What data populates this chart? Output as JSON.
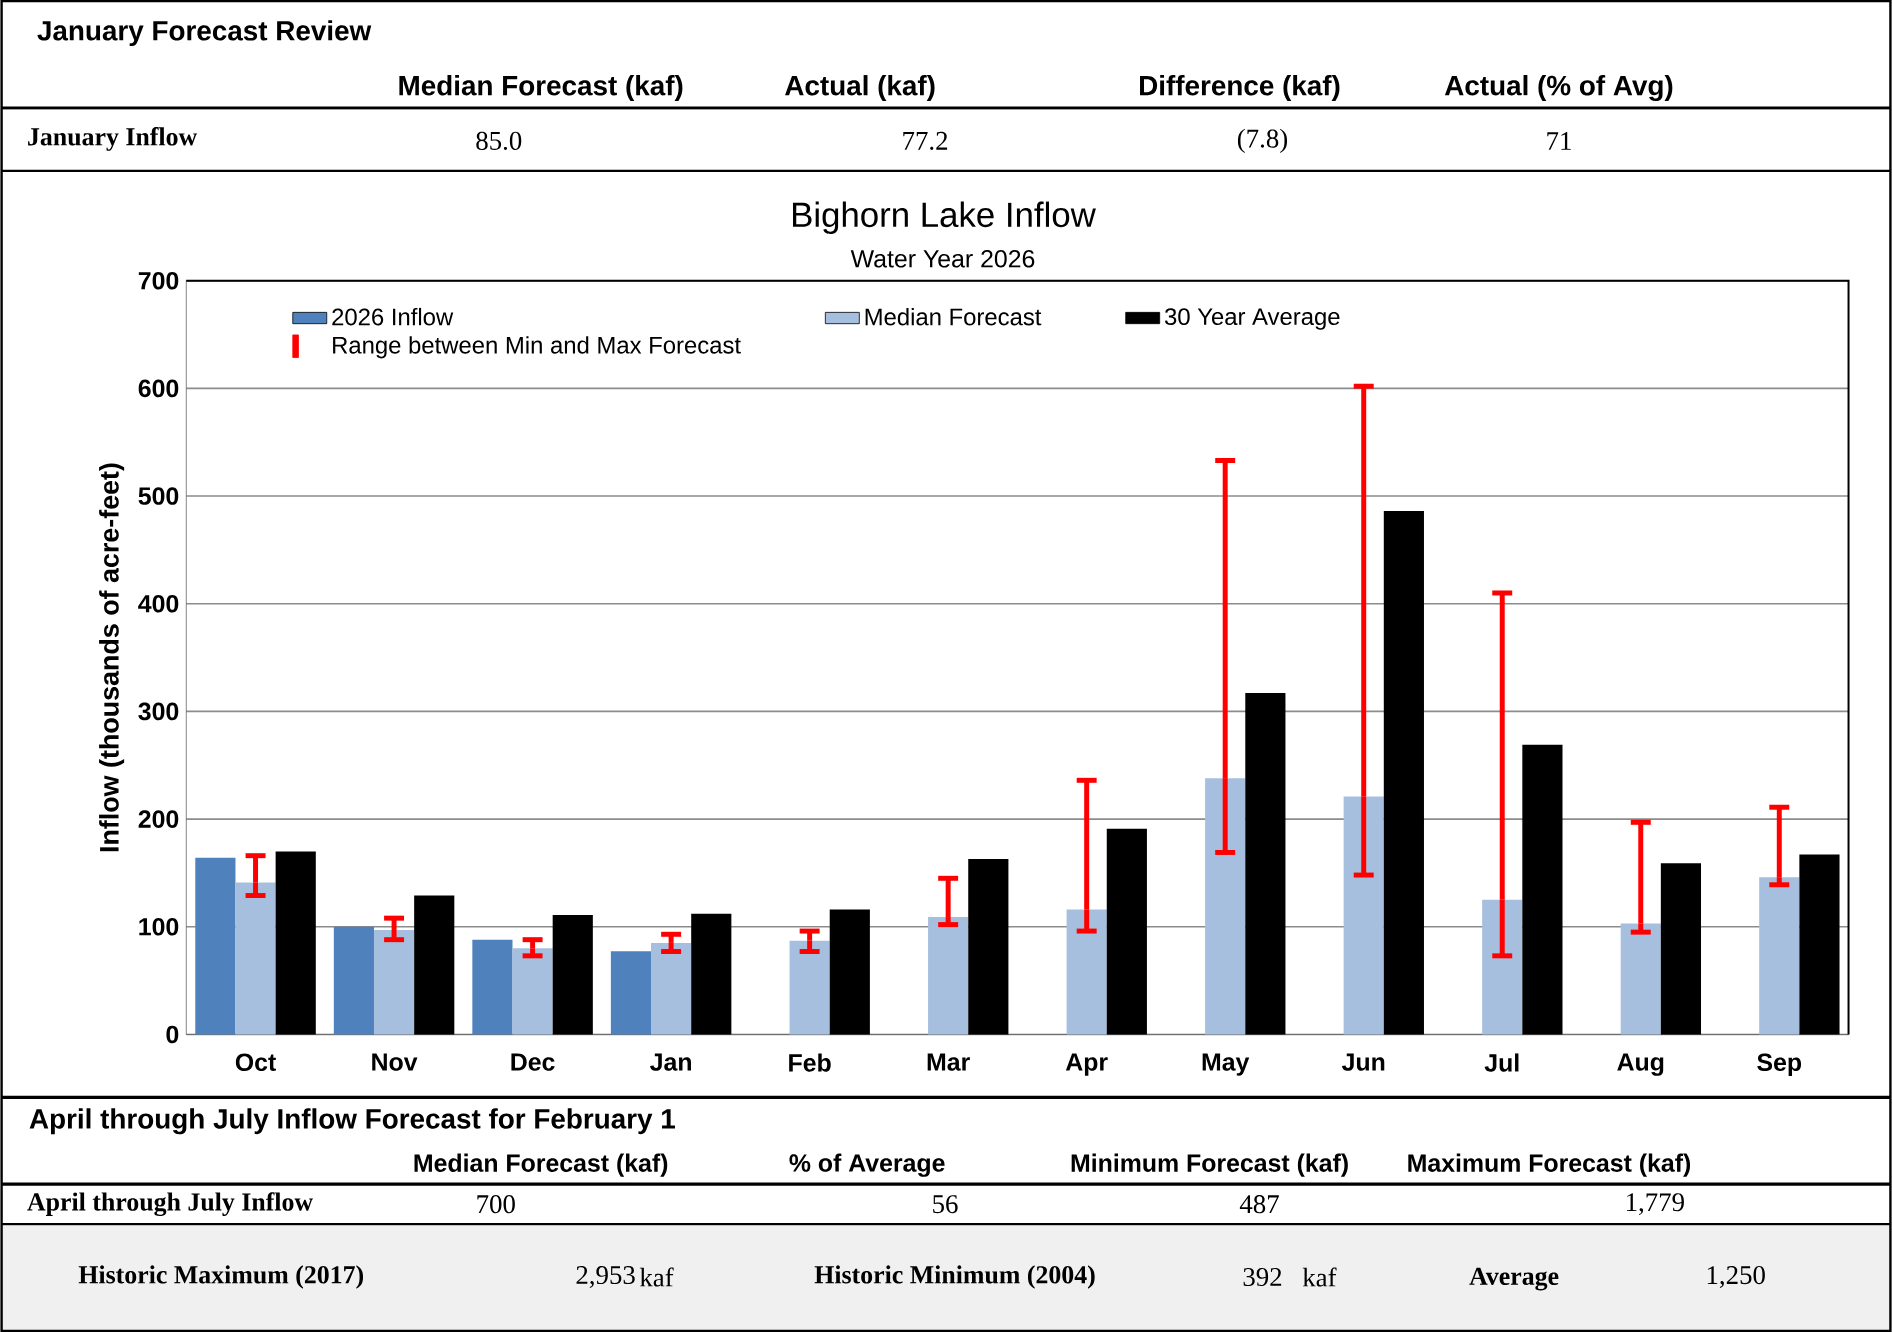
{
  "chart_data": {
    "type": "bar",
    "title": "Bighorn Lake Inflow",
    "subtitle": "Water Year 2026",
    "ylabel": "Inflow (thousands of acre-feet)",
    "categories": [
      "Oct",
      "Nov",
      "Dec",
      "Jan",
      "Feb",
      "Mar",
      "Apr",
      "May",
      "Jun",
      "Jul",
      "Aug",
      "Sep"
    ],
    "series": [
      {
        "name": "2026 Inflow",
        "color": "#4f81bd",
        "values": [
          164,
          100,
          88,
          77.2,
          null,
          null,
          null,
          null,
          null,
          null,
          null,
          null
        ]
      },
      {
        "name": "Median Forecast",
        "color": "#a7bfde",
        "values": [
          141,
          97,
          80,
          85,
          87,
          109,
          116,
          238,
          221,
          125,
          103,
          146
        ],
        "errors": [
          [
            129,
            166
          ],
          [
            88,
            108
          ],
          [
            73,
            88
          ],
          [
            77,
            93
          ],
          [
            77,
            96
          ],
          [
            102,
            145
          ],
          [
            96,
            236
          ],
          [
            169,
            533
          ],
          [
            148,
            602
          ],
          [
            73,
            410
          ],
          [
            95,
            197
          ],
          [
            139,
            211
          ]
        ]
      },
      {
        "name": "30 Year Average",
        "color": "#000000",
        "values": [
          170,
          129,
          111,
          112,
          116,
          163,
          191,
          317,
          486,
          269,
          159,
          167
        ]
      }
    ],
    "ylim": [
      0,
      700
    ],
    "yticks": [
      0,
      100,
      200,
      300,
      400,
      500,
      600,
      700
    ],
    "grid": "y",
    "legend": "top left",
    "annotations": [
      "January Forecast Review",
      "Median Forecast (kaf)",
      "Actual (kaf)",
      "Difference (kaf)",
      "Actual (% of Avg)",
      "January Inflow",
      "85.0",
      "77.2",
      "(7.8)",
      "71",
      "April through July Inflow Forecast for February 1",
      "Median Forecast (kaf)",
      "% of Average",
      "Minimum Forecast (kaf)",
      "Maximum Forecast (kaf)",
      "April through July Inflow",
      "700",
      "56",
      "487",
      "1,779",
      "Historic Maximum (2017)",
      "2,953",
      "kaf",
      "Historic Minimum (2004)",
      "392",
      "kaf",
      "Average",
      "1,250",
      "Range between Min and Max Forecast"
    ]
  }
}
